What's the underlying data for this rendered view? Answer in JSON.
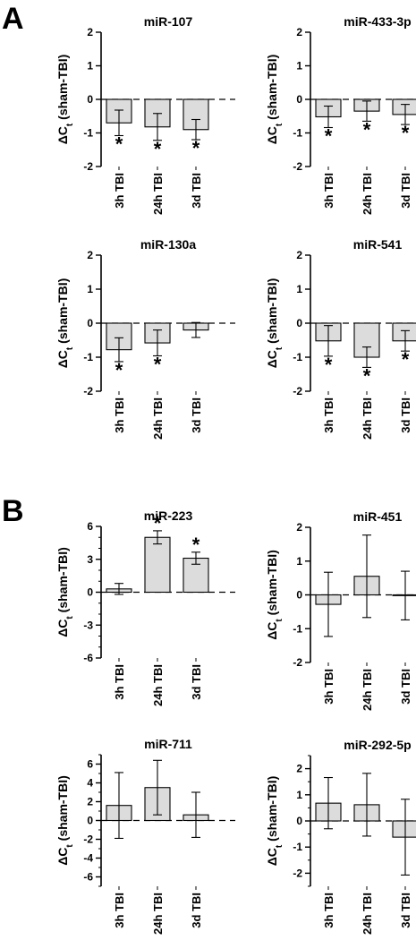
{
  "panel_labels": [
    "A",
    "B"
  ],
  "bar_color": "#dcdcdc",
  "chart_data": [
    {
      "type": "bar",
      "panel": "A",
      "title": "miR-107",
      "ylabel": "ΔCt (sham-TBI)",
      "categories": [
        "3h TBI",
        "24h TBI",
        "3d TBI"
      ],
      "values": [
        -0.7,
        -0.82,
        -0.9
      ],
      "errors": [
        0.38,
        0.4,
        0.3
      ],
      "significant": [
        true,
        true,
        true
      ],
      "ylim": [
        -2,
        2
      ],
      "yticks": [
        2,
        1,
        0,
        -1,
        -2
      ],
      "baseline": "dashed at 0"
    },
    {
      "type": "bar",
      "panel": "A",
      "title": "miR-433-3p",
      "ylabel": "ΔCt (sham-TBI)",
      "categories": [
        "3h TBI",
        "24h TBI",
        "3d TBI"
      ],
      "values": [
        -0.52,
        -0.35,
        -0.45
      ],
      "errors": [
        0.32,
        0.3,
        0.3
      ],
      "significant": [
        true,
        true,
        true
      ],
      "ylim": [
        -2,
        2
      ],
      "yticks": [
        2,
        1,
        0,
        -1,
        -2
      ],
      "baseline": "dashed at 0"
    },
    {
      "type": "bar",
      "panel": "A",
      "title": "miR-130a",
      "ylabel": "ΔCt (sham-TBI)",
      "categories": [
        "3h TBI",
        "24h TBI",
        "3d TBI"
      ],
      "values": [
        -0.78,
        -0.58,
        -0.2
      ],
      "errors": [
        0.35,
        0.38,
        0.22
      ],
      "significant": [
        true,
        true,
        false
      ],
      "ylim": [
        -2,
        2
      ],
      "yticks": [
        2,
        1,
        0,
        -1,
        -2
      ],
      "baseline": "dashed at 0"
    },
    {
      "type": "bar",
      "panel": "A",
      "title": "miR-541",
      "ylabel": "ΔCt (sham-TBI)",
      "categories": [
        "3h TBI",
        "24h TBI",
        "3d TBI"
      ],
      "values": [
        -0.52,
        -1.0,
        -0.52
      ],
      "errors": [
        0.45,
        0.3,
        0.3
      ],
      "significant": [
        true,
        true,
        true
      ],
      "ylim": [
        -2,
        2
      ],
      "yticks": [
        2,
        1,
        0,
        -1,
        -2
      ],
      "baseline": "dashed at 0"
    },
    {
      "type": "bar",
      "panel": "B",
      "title": "miR-223",
      "ylabel": "ΔCt (sham-TBI)",
      "categories": [
        "3h TBI",
        "24h TBI",
        "3d TBI"
      ],
      "values": [
        0.3,
        5.0,
        3.1
      ],
      "errors": [
        0.5,
        0.6,
        0.55
      ],
      "significant": [
        false,
        true,
        true
      ],
      "ylim": [
        -6,
        6
      ],
      "yticks": [
        6,
        3,
        0,
        -3,
        -6
      ],
      "minor_step": 1,
      "baseline": "dashed at 0"
    },
    {
      "type": "bar",
      "panel": "B",
      "title": "miR-451",
      "ylabel": "ΔCt (sham-TBI)",
      "categories": [
        "3h TBI",
        "24h TBI",
        "3d TBI"
      ],
      "values": [
        -0.28,
        0.55,
        -0.02
      ],
      "errors": [
        0.95,
        1.22,
        0.72
      ],
      "significant": [
        false,
        false,
        false
      ],
      "ylim": [
        -2,
        2
      ],
      "yticks": [
        2,
        1,
        0,
        -1,
        -2
      ],
      "baseline": "dashed at 0"
    },
    {
      "type": "bar",
      "panel": "B",
      "title": "miR-711",
      "ylabel": "ΔCt (sham-TBI)",
      "categories": [
        "3h TBI",
        "24h TBI",
        "3d TBI"
      ],
      "values": [
        1.6,
        3.5,
        0.6
      ],
      "errors": [
        3.5,
        2.9,
        2.4
      ],
      "significant": [
        false,
        false,
        false
      ],
      "ylim": [
        -7,
        7
      ],
      "yticks": [
        6,
        4,
        2,
        0,
        -2,
        -4,
        -6
      ],
      "minor_step": 1,
      "baseline": "dashed at 0"
    },
    {
      "type": "bar",
      "panel": "B",
      "title": "miR-292-5p",
      "ylabel": "ΔCt (sham-TBI)",
      "categories": [
        "3h TBI",
        "24h TBI",
        "3d TBI"
      ],
      "values": [
        0.68,
        0.62,
        -0.62
      ],
      "errors": [
        0.98,
        1.2,
        1.45
      ],
      "significant": [
        false,
        false,
        false
      ],
      "ylim": [
        -2.5,
        2.5
      ],
      "yticks": [
        2,
        1,
        0,
        -1,
        -2
      ],
      "minor_step": 0.5,
      "baseline": "dashed at 0"
    }
  ]
}
